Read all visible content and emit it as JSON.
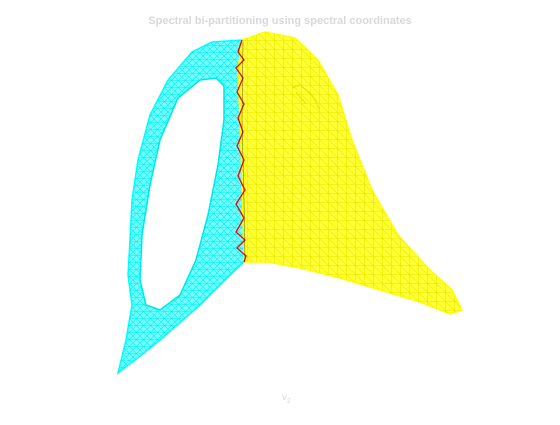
{
  "title": "Spectral bi-partitioning using spectral coordinates",
  "xlabel": {
    "symbol": "v",
    "subscript": "2"
  },
  "colors": {
    "partition_a": "#00ffff",
    "partition_b": "#ffff00",
    "separator": "#ff0000",
    "label": "#d9d9d9"
  }
}
